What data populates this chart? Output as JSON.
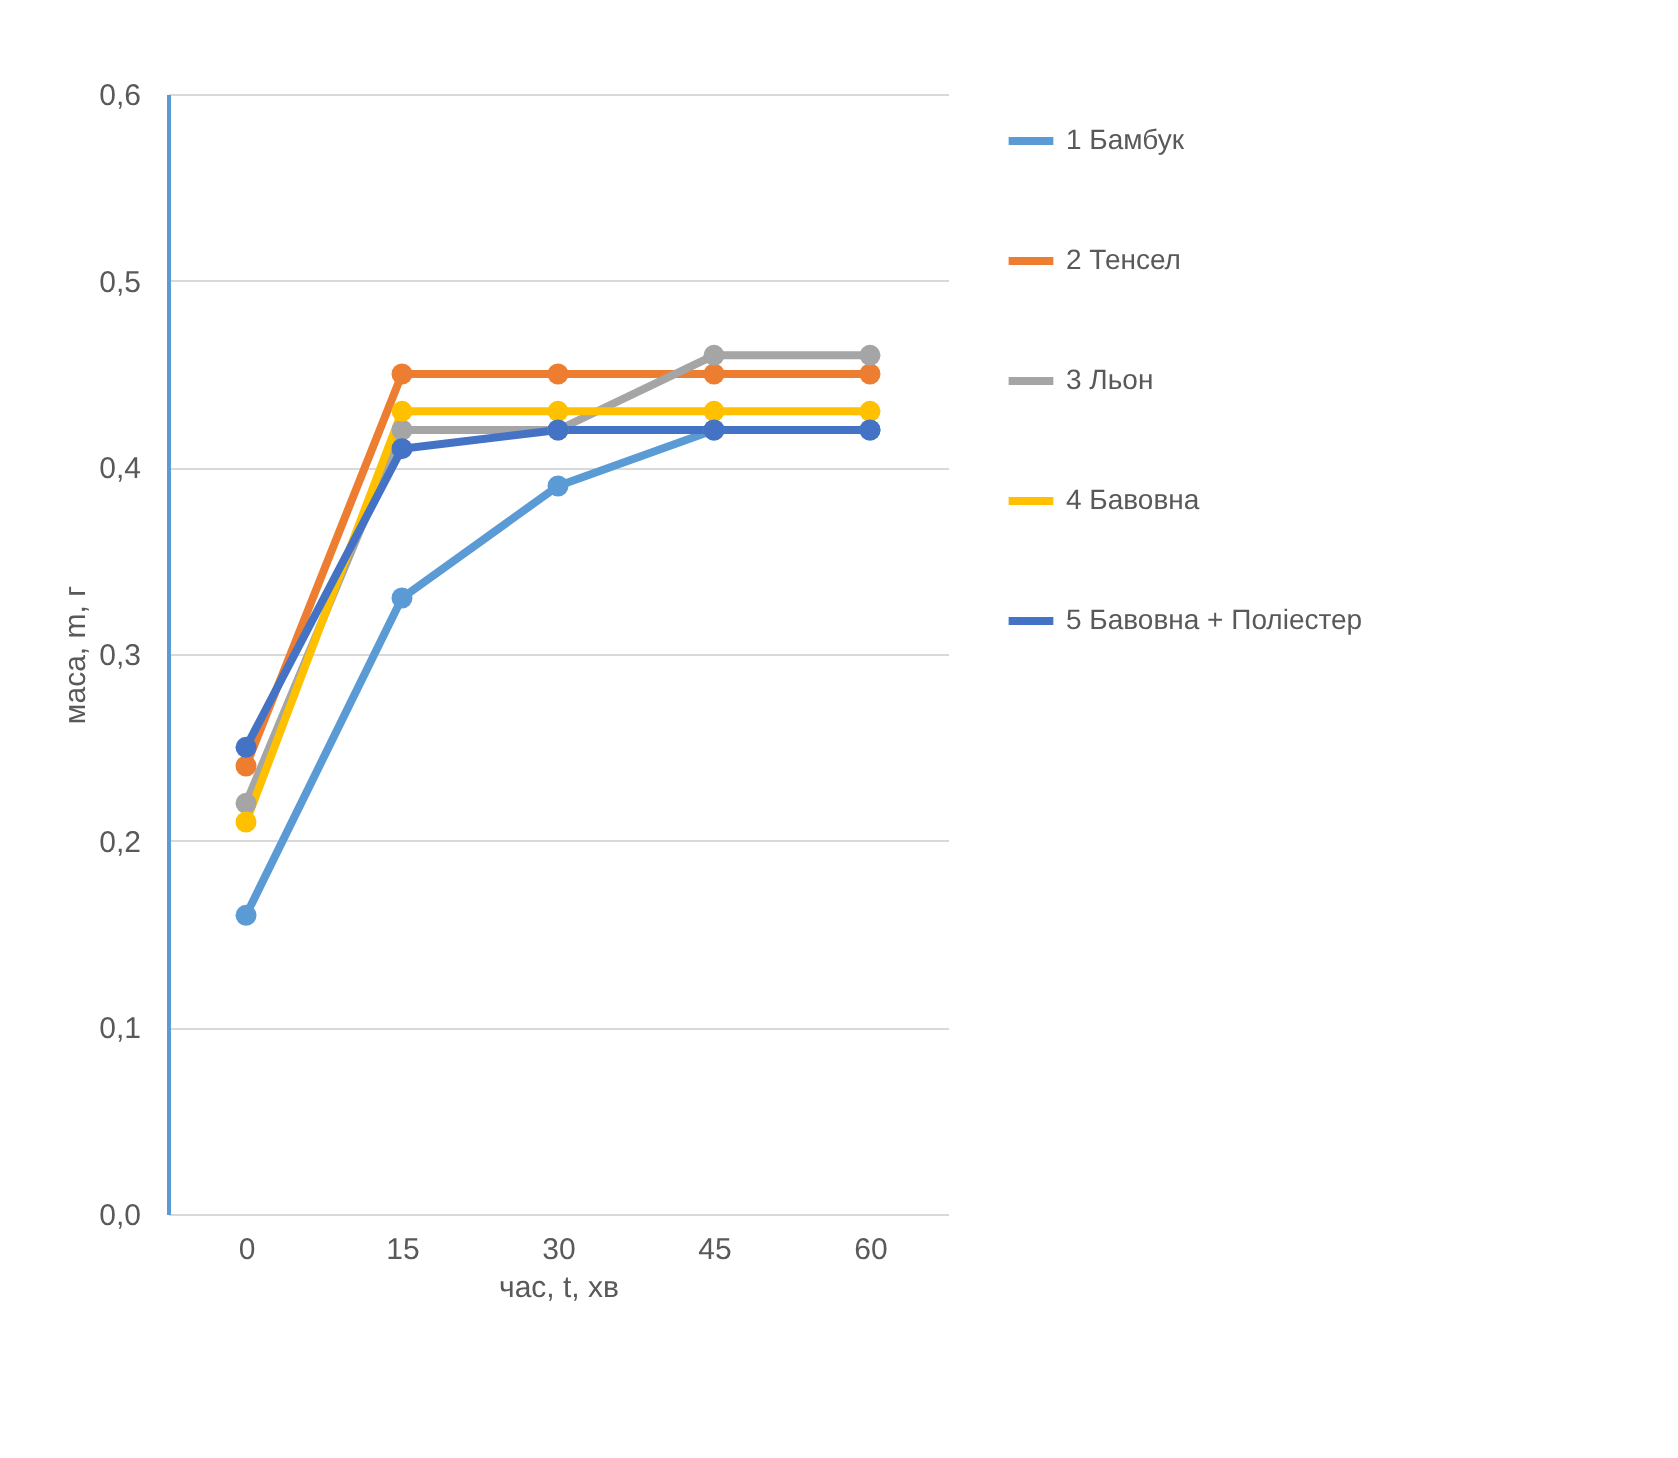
{
  "chart_data": {
    "type": "line",
    "xlabel": "час, t, хв",
    "ylabel": "маса, m, г",
    "categories": [
      "0",
      "15",
      "30",
      "45",
      "60"
    ],
    "series": [
      {
        "name": "1 Бамбук",
        "color": "#5b9bd5",
        "values": [
          0.16,
          0.33,
          0.39,
          0.42,
          0.42
        ]
      },
      {
        "name": "2 Тенсел",
        "color": "#ed7d31",
        "values": [
          0.24,
          0.45,
          0.45,
          0.45,
          0.45
        ]
      },
      {
        "name": "3 Льон",
        "color": "#a5a5a5",
        "values": [
          0.22,
          0.42,
          0.42,
          0.46,
          0.46
        ]
      },
      {
        "name": "4 Бавовна",
        "color": "#ffc000",
        "values": [
          0.21,
          0.43,
          0.43,
          0.43,
          0.43
        ]
      },
      {
        "name": "5 Бавовна + Поліестер",
        "color": "#4472c4",
        "values": [
          0.25,
          0.41,
          0.42,
          0.42,
          0.42
        ]
      }
    ],
    "ylim": [
      0,
      0.6
    ],
    "yticks": [
      {
        "value": 0,
        "label": "0,0"
      },
      {
        "value": 0.1,
        "label": "0,1"
      },
      {
        "value": 0.2,
        "label": "0,2"
      },
      {
        "value": 0.3,
        "label": "0,3"
      },
      {
        "value": 0.4,
        "label": "0,4"
      },
      {
        "value": 0.5,
        "label": "0,5"
      },
      {
        "value": 0.6,
        "label": "0,6"
      }
    ],
    "grid": "y",
    "legend": "right",
    "marker": "circle",
    "line_style": "solid"
  }
}
